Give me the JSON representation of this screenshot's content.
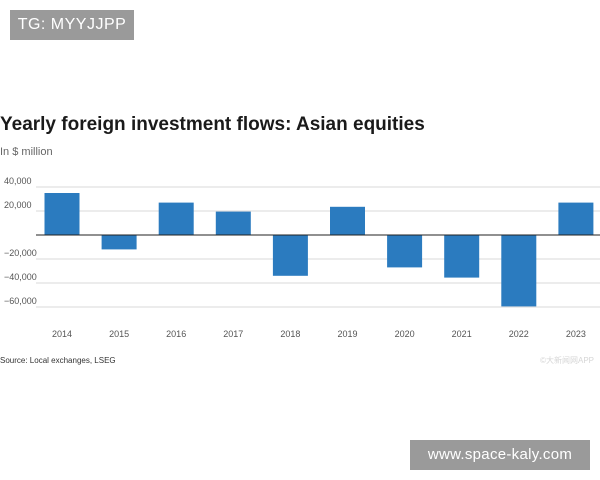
{
  "watermark_top": "TG: MYYJJPP",
  "watermark_bottom": "www.space-kaly.com",
  "source_note": "Source: Local exchanges, LSEG",
  "faint_logo_text": "©大新闻网APP",
  "colors": {
    "bar": "#2b7bbf",
    "grid": "#d9d9d9",
    "zero_line": "#222222",
    "tick_text": "#555555"
  },
  "chart_data": {
    "type": "bar",
    "title": "Yearly foreign investment flows: Asian equities",
    "subtitle": "In $ million",
    "xlabel": "",
    "ylabel": "",
    "categories": [
      "2014",
      "2015",
      "2016",
      "2017",
      "2018",
      "2019",
      "2020",
      "2021",
      "2022",
      "2023"
    ],
    "values": [
      35000,
      -12000,
      27000,
      19500,
      -34000,
      23500,
      -27000,
      -35500,
      -59500,
      27000
    ],
    "ylim": [
      -65000,
      45000
    ],
    "yticks": [
      40000,
      20000,
      0,
      -20000,
      -40000,
      -60000
    ],
    "ytick_labels": [
      "40,000",
      "20,000",
      "",
      "−20,000",
      "−40,000",
      "−60,000"
    ],
    "grid": true,
    "legend": "none"
  }
}
